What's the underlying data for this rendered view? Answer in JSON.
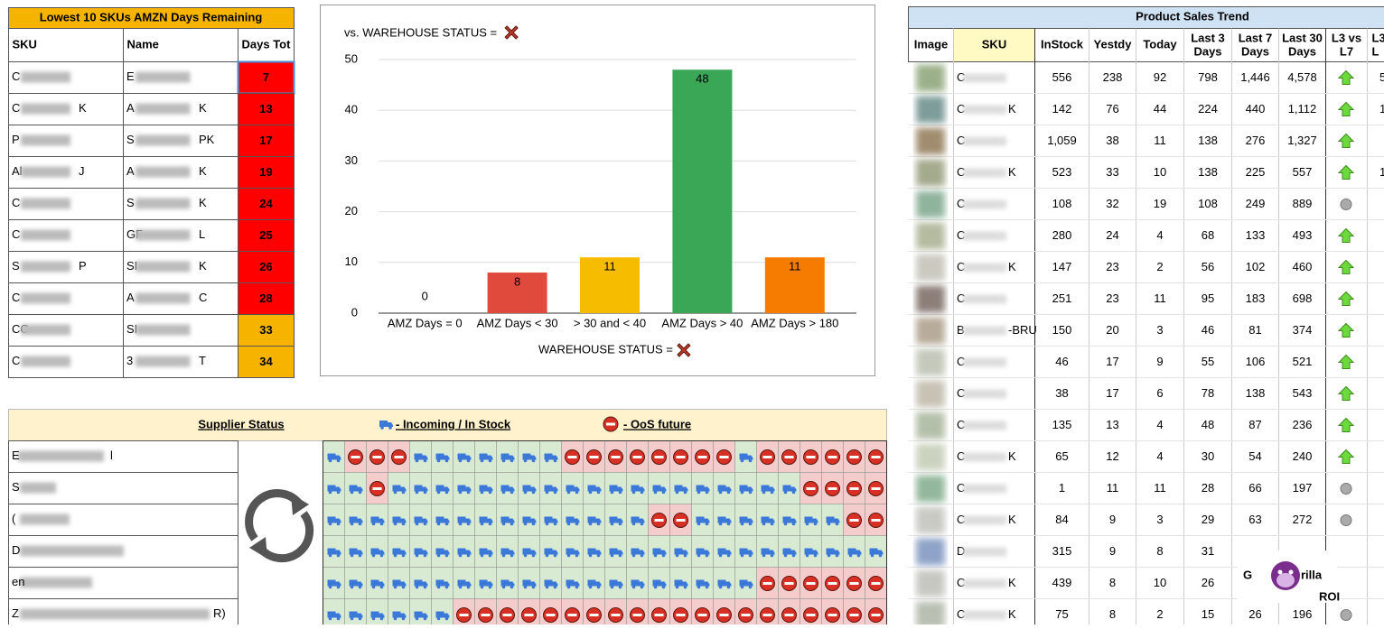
{
  "left_table": {
    "title": "Lowest 10 SKUs AMZN Days Remaining",
    "headers": [
      "SKU",
      "Name",
      "Days Tot"
    ],
    "rows": [
      {
        "sku": [
          "C"
        ],
        "name": [
          "E"
        ],
        "days": 7,
        "color": "#ff0000"
      },
      {
        "sku": [
          "C",
          "K"
        ],
        "name": [
          "A",
          "K"
        ],
        "days": 13,
        "color": "#ff0000"
      },
      {
        "sku": [
          "P"
        ],
        "name": [
          "S",
          "PK"
        ],
        "days": 17,
        "color": "#ff0000"
      },
      {
        "sku": [
          "Al",
          "J"
        ],
        "name": [
          "A",
          "K"
        ],
        "days": 19,
        "color": "#ff0000"
      },
      {
        "sku": [
          "C"
        ],
        "name": [
          "S",
          "K"
        ],
        "days": 24,
        "color": "#ff0000"
      },
      {
        "sku": [
          "C"
        ],
        "name": [
          "GF",
          "L"
        ],
        "days": 25,
        "color": "#ff0000"
      },
      {
        "sku": [
          "S",
          "P"
        ],
        "name": [
          "SI",
          "K"
        ],
        "days": 26,
        "color": "#ff0000"
      },
      {
        "sku": [
          "C"
        ],
        "name": [
          "A",
          "C"
        ],
        "days": 28,
        "color": "#ff0000"
      },
      {
        "sku": [
          "CC"
        ],
        "name": [
          "SI"
        ],
        "days": 33,
        "color": "#f6b400"
      },
      {
        "sku": [
          "C"
        ],
        "name": [
          "3",
          "T"
        ],
        "days": 34,
        "color": "#f6b400"
      }
    ]
  },
  "chart_data": {
    "type": "bar",
    "title": "vs. WAREHOUSE STATUS =",
    "x_label": "WAREHOUSE STATUS =",
    "categories": [
      "AMZ Days = 0",
      "AMZ Days < 30",
      "> 30 and < 40",
      "AMZ Days > 40",
      "AMZ Days > 180"
    ],
    "values": [
      0,
      8,
      11,
      48,
      11
    ],
    "colors": [
      "#3366cc",
      "#e04a3c",
      "#f6bd00",
      "#3aa757",
      "#f57c00"
    ],
    "ylim": [
      0,
      50
    ],
    "yticks": [
      0,
      10,
      20,
      30,
      40,
      50
    ],
    "grid": true
  },
  "supplier_panel": {
    "header": [
      "Supplier Status",
      "- Incoming / In Stock",
      "- OoS future"
    ],
    "rows": [
      {
        "name": [
          "E",
          "l"
        ],
        "status": "TOOOTTTTTTTOOOOOOOOTOOOOOO"
      },
      {
        "name": [
          "S"
        ],
        "status": "TTOTTTTTTTTTTTTTTTTTTTOOOO"
      },
      {
        "name": [
          "("
        ],
        "status": "TTTTTTTTTTTTTTTOOTTTTTTTOO"
      },
      {
        "name": [
          "D"
        ],
        "status": "TTTTTTTTTTTTTTTTTTTTTTTTTT"
      },
      {
        "name": [
          "en"
        ],
        "status": "TTTTTTTTTTTTTTTTTTTTOOOOOO"
      },
      {
        "name": [
          "Z",
          "R)"
        ],
        "status": "TTTTTTOOOOOOOOOOOOOOOOOOOO"
      }
    ]
  },
  "right_table": {
    "title": "Product Sales Trend",
    "headers": [
      [
        "Image"
      ],
      [
        "SKU"
      ],
      [
        "InStock"
      ],
      [
        "Yestdy"
      ],
      [
        "Today"
      ],
      [
        "Last 3",
        "Days"
      ],
      [
        "Last 7",
        "Days"
      ],
      [
        "Last 30",
        "Days"
      ],
      [
        "L3 vs",
        "L7"
      ],
      [
        "L3",
        "L"
      ]
    ],
    "rows": [
      {
        "sku": [
          "C"
        ],
        "cells": [
          "556",
          "238",
          "92",
          "798",
          "1,446",
          "4,578"
        ],
        "trend": "up",
        "cut": "5"
      },
      {
        "sku": [
          "C",
          "K"
        ],
        "cells": [
          "142",
          "76",
          "44",
          "224",
          "440",
          "1,112"
        ],
        "trend": "up",
        "cut": "1"
      },
      {
        "sku": [
          "C"
        ],
        "cells": [
          "1,059",
          "38",
          "11",
          "138",
          "276",
          "1,327"
        ],
        "trend": "up"
      },
      {
        "sku": [
          "C",
          "K"
        ],
        "cells": [
          "523",
          "33",
          "10",
          "138",
          "225",
          "557"
        ],
        "trend": "up",
        "cut": "1"
      },
      {
        "sku": [
          "C"
        ],
        "cells": [
          "108",
          "32",
          "19",
          "108",
          "249",
          "889"
        ],
        "trend": "flat"
      },
      {
        "sku": [
          "C"
        ],
        "cells": [
          "280",
          "24",
          "4",
          "68",
          "133",
          "493"
        ],
        "trend": "up"
      },
      {
        "sku": [
          "C",
          "K"
        ],
        "cells": [
          "147",
          "23",
          "2",
          "56",
          "102",
          "460"
        ],
        "trend": "up"
      },
      {
        "sku": [
          "C"
        ],
        "cells": [
          "251",
          "23",
          "11",
          "95",
          "183",
          "698"
        ],
        "trend": "up"
      },
      {
        "sku": [
          "B",
          "-BRU"
        ],
        "cells": [
          "150",
          "20",
          "3",
          "46",
          "81",
          "374"
        ],
        "trend": "up"
      },
      {
        "sku": [
          "C"
        ],
        "cells": [
          "46",
          "17",
          "9",
          "55",
          "106",
          "521"
        ],
        "trend": "up"
      },
      {
        "sku": [
          "C"
        ],
        "cells": [
          "38",
          "17",
          "6",
          "78",
          "138",
          "543"
        ],
        "trend": "up"
      },
      {
        "sku": [
          "C"
        ],
        "cells": [
          "135",
          "13",
          "4",
          "48",
          "87",
          "236"
        ],
        "trend": "up"
      },
      {
        "sku": [
          "C",
          "K"
        ],
        "cells": [
          "65",
          "12",
          "4",
          "30",
          "54",
          "240"
        ],
        "trend": "up"
      },
      {
        "sku": [
          "C"
        ],
        "cells": [
          "1",
          "11",
          "11",
          "28",
          "66",
          "197"
        ],
        "trend": "flat"
      },
      {
        "sku": [
          "C",
          "K"
        ],
        "cells": [
          "84",
          "9",
          "3",
          "29",
          "63",
          "272"
        ],
        "trend": "flat"
      },
      {
        "sku": [
          "D"
        ],
        "cells": [
          "315",
          "9",
          "8",
          "31",
          null,
          null
        ],
        "trend": null
      },
      {
        "sku": [
          "C",
          "K"
        ],
        "cells": [
          "439",
          "8",
          "10",
          "26",
          null,
          null
        ],
        "trend": null
      },
      {
        "sku": [
          "C",
          "K"
        ],
        "cells": [
          "75",
          "8",
          "2",
          "15",
          "26",
          "196"
        ],
        "trend": "flat"
      }
    ]
  },
  "logo": {
    "left": "G",
    "right": "rilla",
    "sub": "ROI"
  }
}
